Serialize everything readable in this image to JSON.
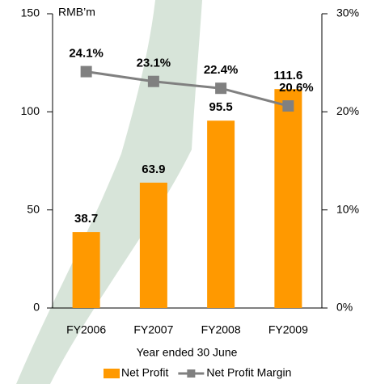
{
  "chart_data": {
    "type": "bar-line",
    "y_label": "RMB’m",
    "x_label": "Year ended 30 June",
    "categories": [
      "FY2006",
      "FY2007",
      "FY2008",
      "FY2009"
    ],
    "series": [
      {
        "name": "Net Profit",
        "type": "bar",
        "color": "#ff9900",
        "values": [
          38.7,
          63.9,
          95.5,
          111.6
        ]
      },
      {
        "name": "Net Profit Margin",
        "type": "line",
        "axis": "y2",
        "color": "#808080",
        "values": [
          24.1,
          23.1,
          22.4,
          20.6
        ],
        "value_labels": [
          "24.1%",
          "23.1%",
          "22.4%",
          "20.6%"
        ]
      }
    ],
    "ylim": [
      0,
      150
    ],
    "yticks": [
      0,
      50,
      100,
      150
    ],
    "y2lim": [
      0,
      30
    ],
    "y2ticks": [
      {
        "value": 0,
        "label": "0%"
      },
      {
        "value": 10,
        "label": "10%"
      },
      {
        "value": 20,
        "label": "20%"
      },
      {
        "value": 30,
        "label": "30%"
      }
    ],
    "legend": "bottom"
  }
}
